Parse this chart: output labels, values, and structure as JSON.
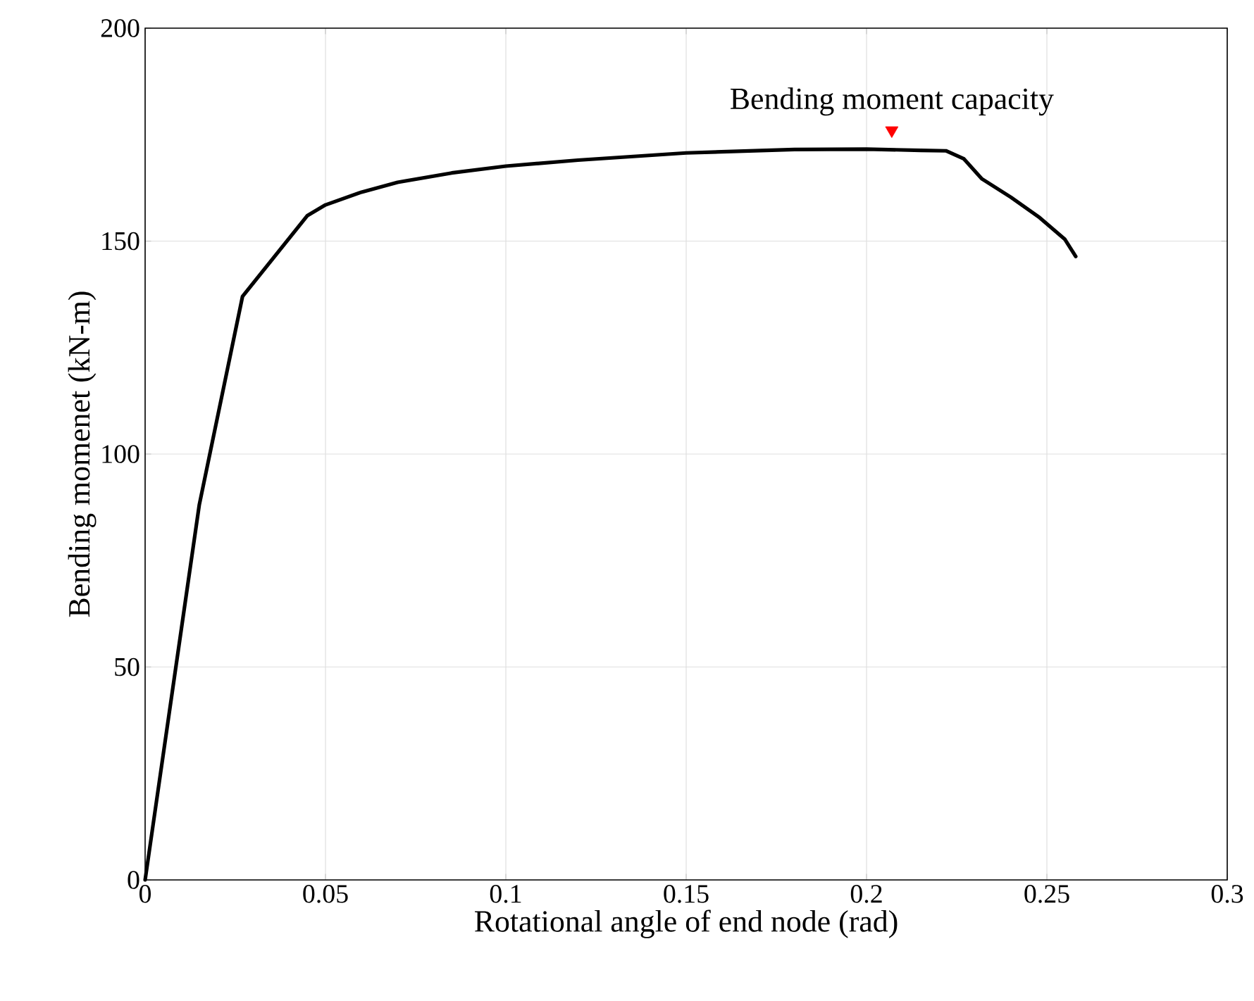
{
  "chart_data": {
    "type": "line",
    "xlabel": "Rotational angle of end node (rad)",
    "ylabel": "Bending momenet (kN-m)",
    "xlim": [
      0,
      0.3
    ],
    "ylim": [
      0,
      200
    ],
    "xticks": [
      0,
      0.05,
      0.1,
      0.15,
      0.2,
      0.25,
      0.3
    ],
    "yticks": [
      0,
      50,
      100,
      150,
      200
    ],
    "grid": true,
    "annotations": [
      {
        "text": "Bending moment capacity",
        "x": 0.207,
        "y": 176
      }
    ],
    "series": [
      {
        "color": "#000000",
        "marker": "none",
        "x": [
          0,
          0.015,
          0.027,
          0.045,
          0.05,
          0.06,
          0.07,
          0.085,
          0.1,
          0.12,
          0.15,
          0.18,
          0.2,
          0.215,
          0.222,
          0.227,
          0.232,
          0.24,
          0.248,
          0.255,
          0.258
        ],
        "values": [
          0,
          88,
          137,
          156,
          158.5,
          161.5,
          163.8,
          166,
          167.6,
          169,
          170.7,
          171.5,
          171.6,
          171.3,
          171.2,
          169.3,
          164.6,
          160.3,
          155.5,
          150.4,
          146.4
        ]
      },
      {
        "type": "scatter",
        "color": "#ff0000",
        "marker": "triangle",
        "x": [
          0.207
        ],
        "values": [
          176
        ]
      }
    ]
  }
}
